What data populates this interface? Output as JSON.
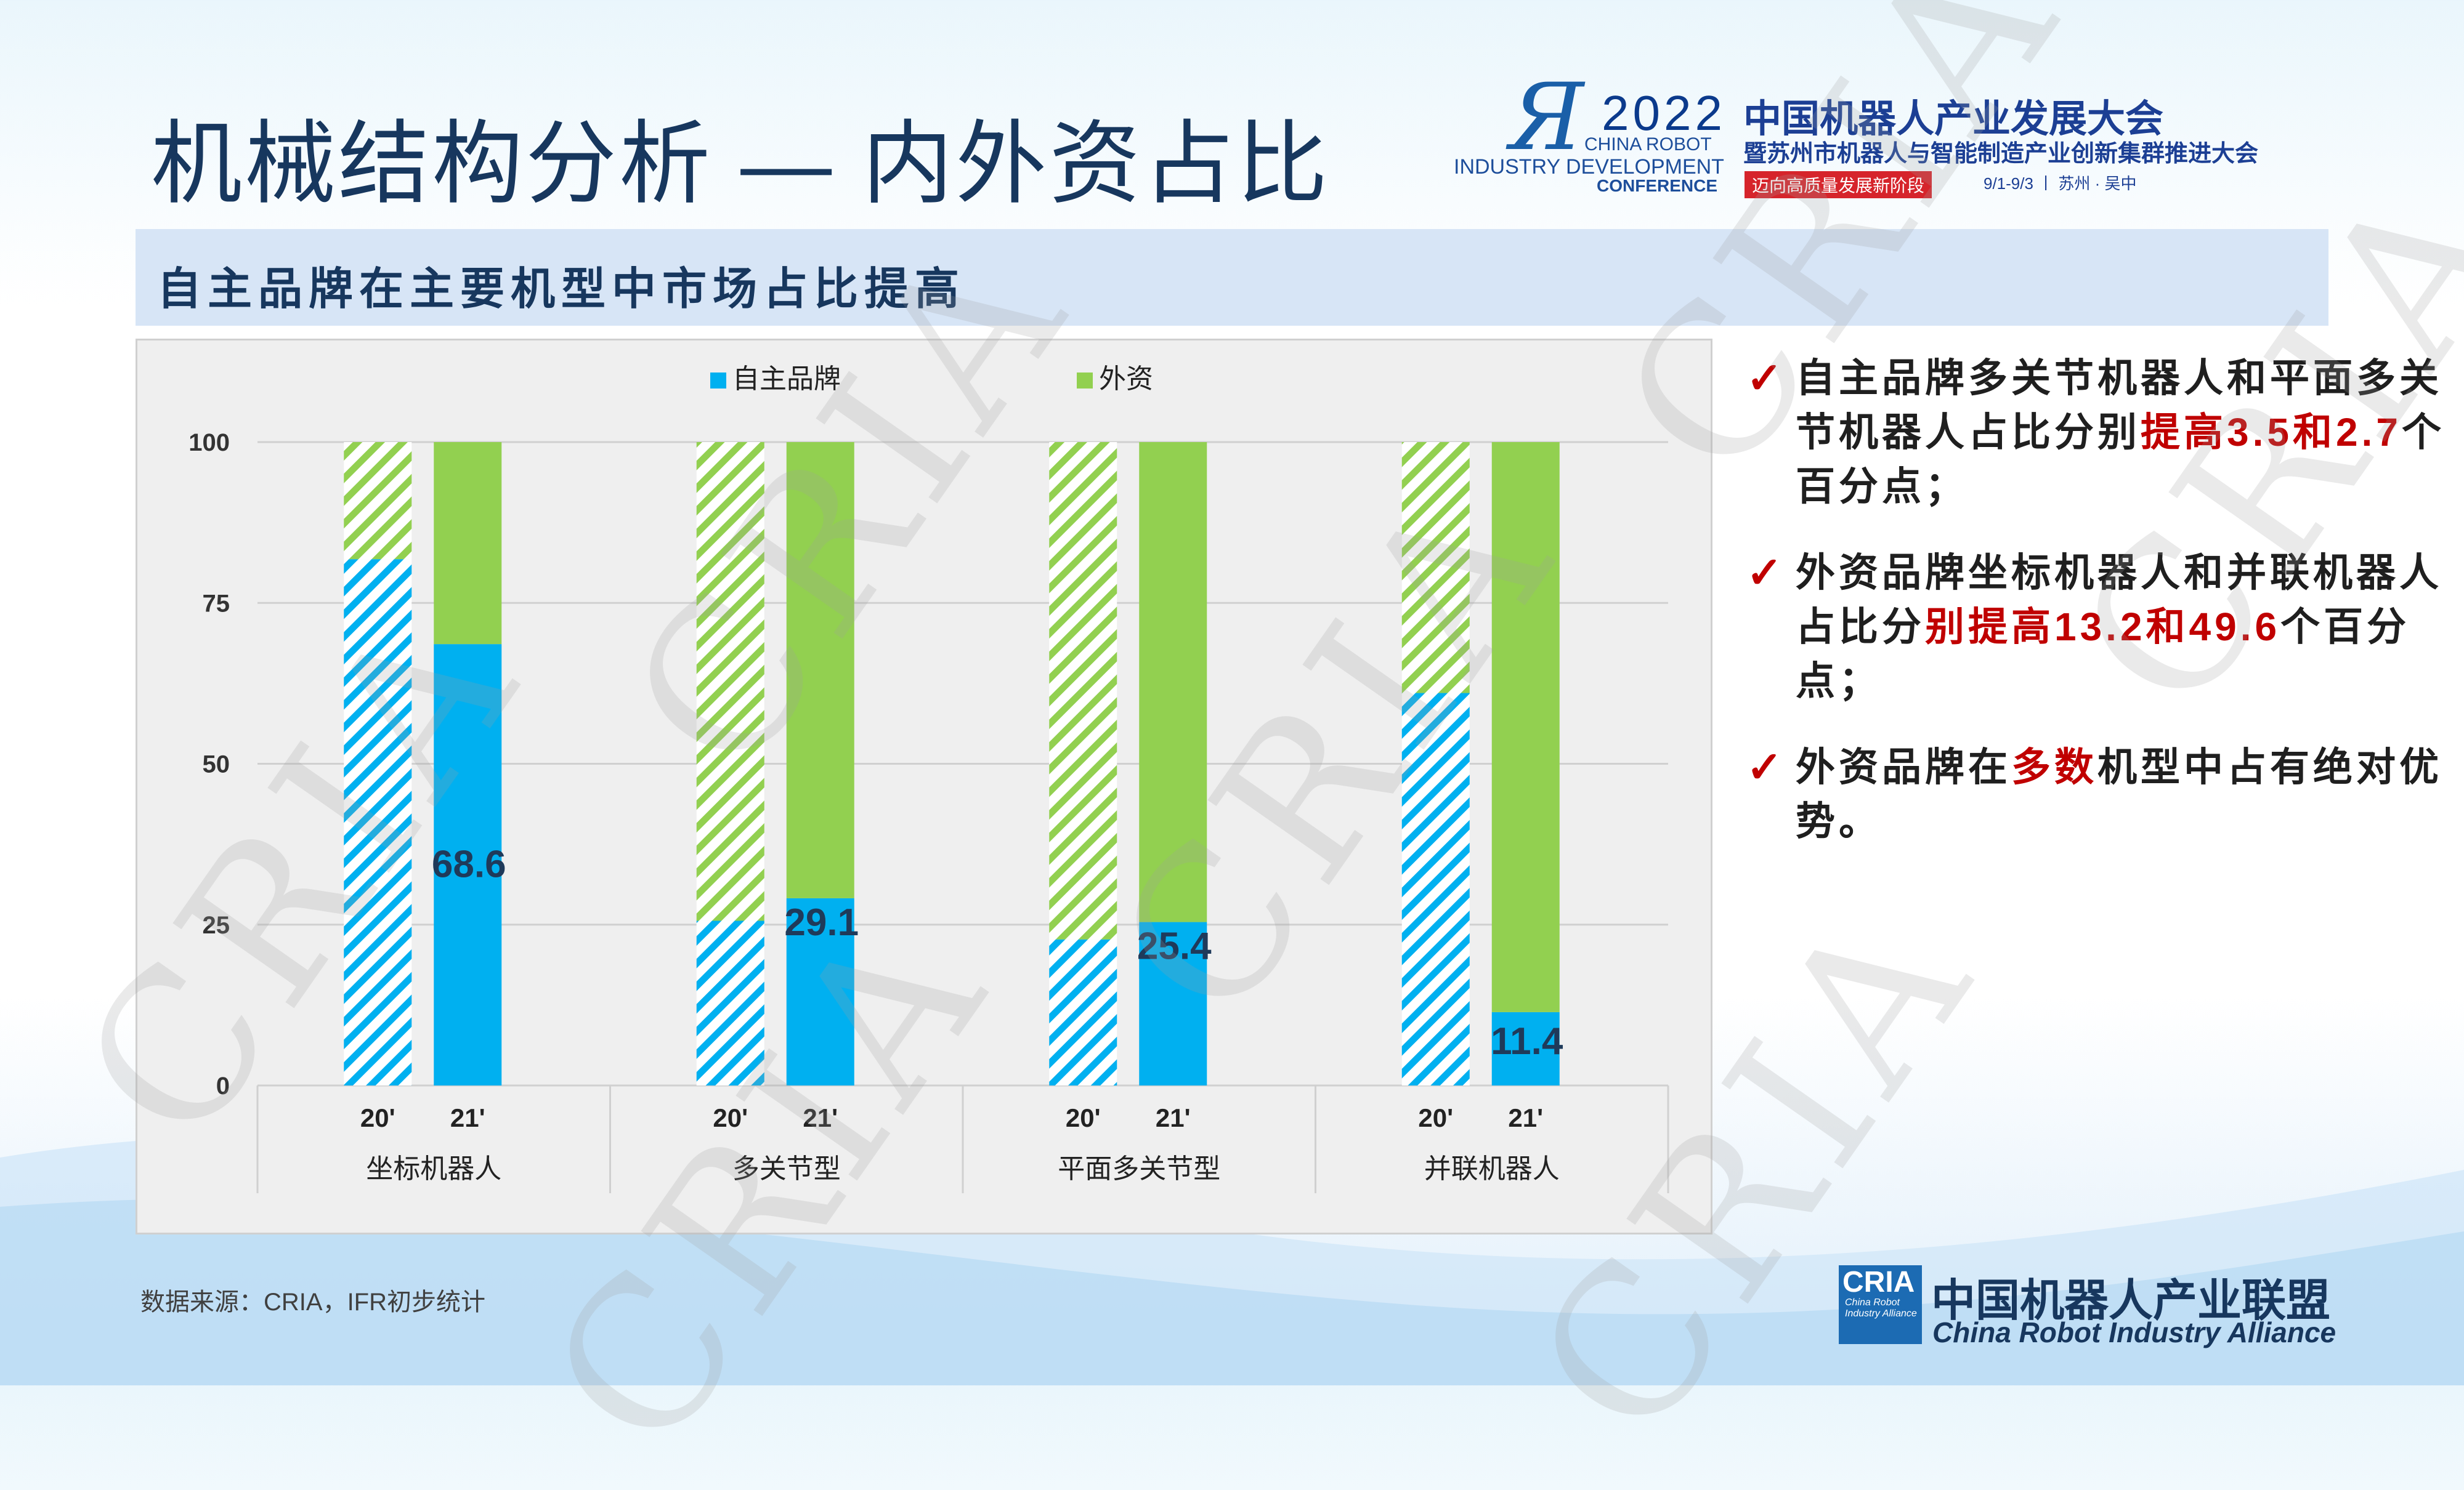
{
  "title": "机械结构分析  — 内外资占比",
  "logo": {
    "year": "2022",
    "en_line1": "CHINA ROBOT",
    "en_line2": "INDUSTRY DEVELOPMENT",
    "en_line3": "CONFERENCE",
    "cn_title": "中国机器人产业发展大会",
    "cn_subtitle": "暨苏州市机器人与智能制造产业创新集群推进大会",
    "slogan": "迈向高质量发展新阶段",
    "date": "9/1-9/3 丨 苏州 · 吴中"
  },
  "subtitle": "自主品牌在主要机型中市场占比提高",
  "bullets": [
    {
      "parts": [
        "自主品牌多关节机器人和平面多关节机器人占比分别",
        "提高3.5和2.7",
        "个百分点；"
      ]
    },
    {
      "parts": [
        "外资品牌坐标机器人和并联机器人占比分",
        "别提高13.2和49.6",
        "个百分点；"
      ]
    },
    {
      "parts": [
        "外资品牌在",
        "多数",
        "机型中占有绝对优势。"
      ]
    }
  ],
  "source": "数据来源：CRIA，IFR初步统计",
  "alliance": {
    "abbr": "CRIA",
    "abbr_sub": "China Robot Industry Alliance",
    "cn": "中国机器人产业联盟",
    "en": "China Robot Industry Alliance"
  },
  "watermark": "CRIA",
  "colors": {
    "domestic": "#00b0f0",
    "foreign": "#92d050",
    "title": "#17375e",
    "highlight": "#c00000"
  },
  "chart_data": {
    "type": "bar",
    "stacked": true,
    "categories": [
      "坐标机器人",
      "多关节型",
      "平面多关节型",
      "并联机器人"
    ],
    "sub_categories": [
      "20'",
      "21'"
    ],
    "series": [
      {
        "name": "自主品牌",
        "color": "#00b0f0",
        "values_20": [
          81.8,
          25.6,
          22.7,
          61.0
        ],
        "values_21": [
          68.6,
          29.1,
          25.4,
          11.4
        ]
      },
      {
        "name": "外资",
        "color": "#92d050",
        "values_20": [
          18.2,
          74.4,
          77.3,
          39.0
        ],
        "values_21": [
          31.4,
          70.9,
          74.6,
          88.6
        ]
      }
    ],
    "data_labels_21": [
      "68.6",
      "29.1",
      "25.4",
      "11.4"
    ],
    "yticks": [
      0,
      25,
      50,
      75,
      100
    ],
    "ylim": [
      0,
      100
    ],
    "hatched": "20'",
    "legend": "top",
    "grid": true
  }
}
